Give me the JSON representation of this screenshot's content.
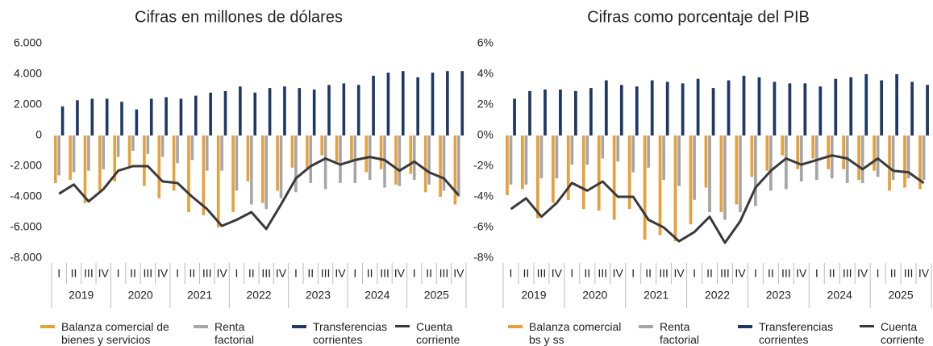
{
  "chart_data": [
    {
      "type": "bar_line",
      "title": "Cifras en millones de dólares",
      "categories": [
        "I",
        "II",
        "III",
        "IV",
        "I",
        "II",
        "III",
        "IV",
        "I",
        "II",
        "III",
        "IV",
        "I",
        "II",
        "III",
        "IV",
        "I",
        "II",
        "III",
        "IV",
        "I",
        "II",
        "III",
        "IV",
        "I",
        "II",
        "III",
        "IV"
      ],
      "groups": [
        "2019",
        "2020",
        "2021",
        "2022",
        "2023",
        "2024",
        "2025"
      ],
      "ylim": [
        -8000,
        6000
      ],
      "yticks": [
        {
          "value": -8000,
          "label": "-8.000"
        },
        {
          "value": -6000,
          "label": "-6.000"
        },
        {
          "value": -4000,
          "label": "-4.000"
        },
        {
          "value": -2000,
          "label": "-2.000"
        },
        0,
        {
          "value": 2000,
          "label": "2.000"
        },
        {
          "value": 4000,
          "label": "4.000"
        },
        {
          "value": 6000,
          "label": "6.000"
        }
      ],
      "grid": false,
      "series": [
        {
          "name": "Balanza comercial de bienes y servicios",
          "color": "#e8a03a",
          "kind": "bar",
          "values": [
            -3100,
            -2900,
            -4400,
            -3600,
            -3000,
            -2000,
            -3300,
            -4100,
            -3600,
            -5000,
            -5200,
            -6000,
            -5000,
            -3000,
            -4400,
            -3600,
            -2100,
            -2100,
            -1300,
            -1700,
            -1600,
            -2400,
            -2200,
            -3200,
            -2500,
            -3700,
            -4000,
            -4500
          ]
        },
        {
          "name": "Renta factorial",
          "color": "#a6a6a6",
          "kind": "bar",
          "values": [
            -2600,
            -2400,
            -2300,
            -2200,
            -1400,
            -1000,
            -1200,
            -1400,
            -1800,
            -1600,
            -2300,
            -2300,
            -3600,
            -4500,
            -4800,
            -4100,
            -3700,
            -3100,
            -3500,
            -3100,
            -3100,
            -2900,
            -3400,
            -3300,
            -2900,
            -3200,
            -3600,
            -4000
          ]
        },
        {
          "name": "Transferencias corrientes",
          "color": "#1f3864",
          "kind": "bar",
          "values": [
            1900,
            2300,
            2400,
            2400,
            2200,
            1700,
            2400,
            2500,
            2400,
            2600,
            2800,
            2900,
            3200,
            2800,
            3100,
            3200,
            3100,
            3000,
            3300,
            3400,
            3300,
            3900,
            4100,
            4200,
            3800,
            4100,
            4200,
            4200
          ]
        },
        {
          "name": "Cuenta corriente",
          "color": "#3a3a3a",
          "kind": "line",
          "values": [
            -3800,
            -3200,
            -4300,
            -3500,
            -2300,
            -2000,
            -2000,
            -3000,
            -3100,
            -4000,
            -4800,
            -5900,
            -5500,
            -5000,
            -6100,
            -4500,
            -2800,
            -2000,
            -1500,
            -1900,
            -1600,
            -1400,
            -1600,
            -2300,
            -1700,
            -2400,
            -2800,
            -3900
          ]
        }
      ]
    },
    {
      "type": "bar_line",
      "title": "Cifras como porcentaje del PIB",
      "categories": [
        "I",
        "II",
        "III",
        "IV",
        "I",
        "II",
        "III",
        "IV",
        "I",
        "II",
        "III",
        "IV",
        "I",
        "II",
        "III",
        "IV",
        "I",
        "II",
        "III",
        "IV",
        "I",
        "II",
        "III",
        "IV",
        "I",
        "II",
        "III",
        "IV"
      ],
      "groups": [
        "2019",
        "2020",
        "2021",
        "2022",
        "2023",
        "2024",
        "2025"
      ],
      "ylim": [
        -8,
        6
      ],
      "yticks": [
        {
          "value": -8,
          "label": "-8%"
        },
        {
          "value": -6,
          "label": "-6%"
        },
        {
          "value": -4,
          "label": "-4%"
        },
        {
          "value": -2,
          "label": "-2%"
        },
        {
          "value": 0,
          "label": "0%"
        },
        {
          "value": 2,
          "label": "2%"
        },
        {
          "value": 4,
          "label": "4%"
        },
        {
          "value": 6,
          "label": "6%"
        }
      ],
      "grid": false,
      "series": [
        {
          "name": "Balanza comercial bs y ss",
          "color": "#e8a03a",
          "kind": "bar",
          "values": [
            -3.9,
            -3.5,
            -5.4,
            -4.4,
            -4.2,
            -4.8,
            -4.9,
            -5.5,
            -4.8,
            -6.8,
            -6.5,
            -6.9,
            -5.8,
            -3.4,
            -5.0,
            -4.5,
            -2.7,
            -2.3,
            -1.3,
            -2.2,
            -1.5,
            -2.2,
            -2.2,
            -2.9,
            -2.3,
            -3.6,
            -3.4,
            -3.5
          ]
        },
        {
          "name": "Renta factorial",
          "color": "#a6a6a6",
          "kind": "bar",
          "values": [
            -3.2,
            -3.2,
            -2.8,
            -2.8,
            -1.9,
            -1.9,
            -1.5,
            -1.7,
            -2.4,
            -2.1,
            -2.9,
            -3.3,
            -4.2,
            -5.0,
            -5.5,
            -5.0,
            -4.6,
            -3.6,
            -3.5,
            -3.0,
            -2.9,
            -2.8,
            -3.1,
            -3.1,
            -2.7,
            -2.9,
            -2.8,
            -2.9
          ]
        },
        {
          "name": "Transferencias corrientes",
          "color": "#1f3864",
          "kind": "bar",
          "values": [
            2.4,
            2.9,
            3.0,
            3.0,
            2.9,
            3.1,
            3.6,
            3.3,
            3.2,
            3.6,
            3.5,
            3.4,
            3.7,
            3.1,
            3.6,
            3.9,
            3.8,
            3.5,
            3.4,
            3.4,
            3.2,
            3.7,
            3.8,
            4.0,
            3.6,
            4.0,
            3.5,
            3.3
          ]
        },
        {
          "name": "Cuenta corriente",
          "color": "#3a3a3a",
          "kind": "line",
          "values": [
            -4.8,
            -4.1,
            -5.3,
            -4.4,
            -3.1,
            -3.6,
            -3.0,
            -4.0,
            -4.0,
            -5.5,
            -6.0,
            -6.9,
            -6.3,
            -5.3,
            -7.0,
            -5.6,
            -3.4,
            -2.3,
            -1.5,
            -1.9,
            -1.6,
            -1.3,
            -1.5,
            -2.2,
            -1.5,
            -2.3,
            -2.4,
            -3.1
          ]
        }
      ]
    }
  ]
}
